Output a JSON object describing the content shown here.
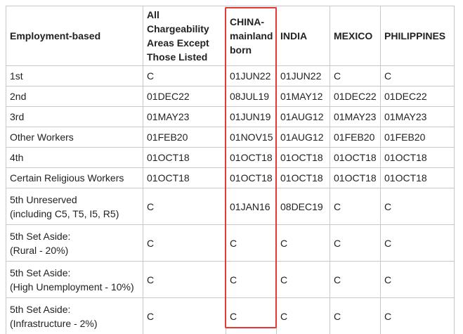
{
  "table": {
    "header": [
      "Employment-based",
      "All Chargeability Areas Except Those Listed",
      "CHINA-mainland born",
      "INDIA",
      "MEXICO",
      "PHILIPPINES"
    ],
    "rows": [
      [
        "1st",
        "C",
        "01JUN22",
        "01JUN22",
        "C",
        "C"
      ],
      [
        "2nd",
        "01DEC22",
        "08JUL19",
        "01MAY12",
        "01DEC22",
        "01DEC22"
      ],
      [
        "3rd",
        "01MAY23",
        "01JUN19",
        "01AUG12",
        "01MAY23",
        "01MAY23"
      ],
      [
        "Other Workers",
        "01FEB20",
        "01NOV15",
        "01AUG12",
        "01FEB20",
        "01FEB20"
      ],
      [
        "4th",
        "01OCT18",
        "01OCT18",
        "01OCT18",
        "01OCT18",
        "01OCT18"
      ],
      [
        "Certain Religious Workers",
        "01OCT18",
        "01OCT18",
        "01OCT18",
        "01OCT18",
        "01OCT18"
      ],
      [
        [
          "5th Unreserved",
          "(including C5, T5, I5, R5)"
        ],
        "C",
        "01JAN16",
        "08DEC19",
        "C",
        "C"
      ],
      [
        [
          "5th Set Aside:",
          "(Rural - 20%)"
        ],
        "C",
        "C",
        "C",
        "C",
        "C"
      ],
      [
        [
          "5th Set Aside:",
          "(High Unemployment - 10%)"
        ],
        "C",
        "C",
        "C",
        "C",
        "C"
      ],
      [
        [
          "5th Set Aside:",
          "(Infrastructure - 2%)"
        ],
        "C",
        "C",
        "C",
        "C",
        "C"
      ]
    ]
  }
}
